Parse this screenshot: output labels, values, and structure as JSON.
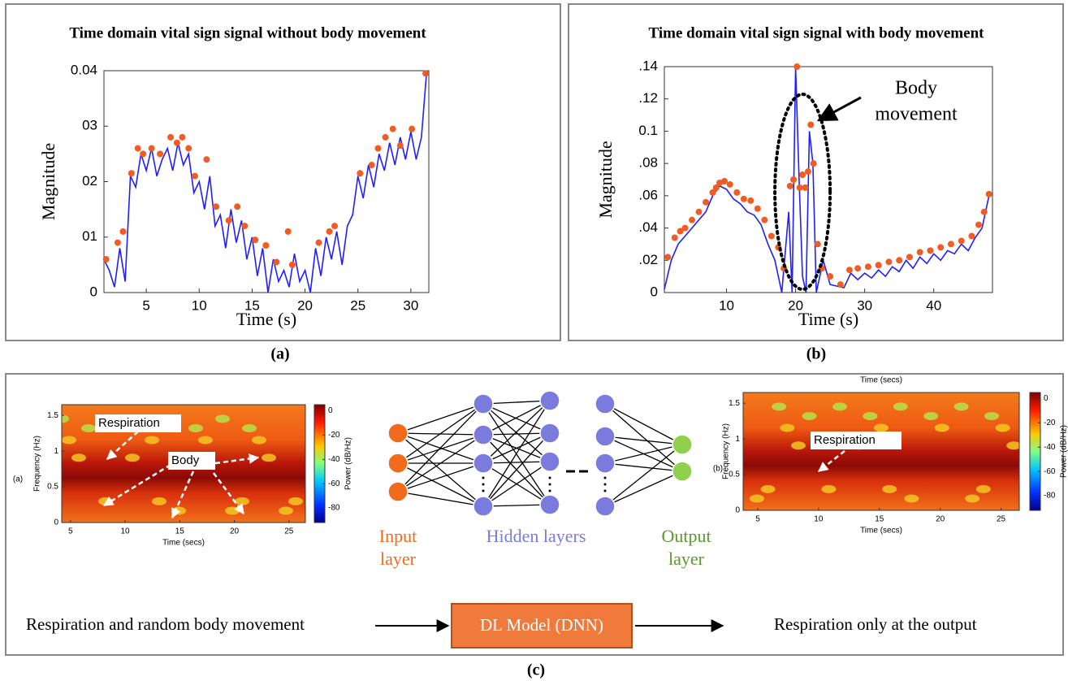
{
  "chart_data": [
    {
      "type": "line",
      "label": "(a)",
      "title": "Time domain vital sign signal without body movement",
      "xlabel": "Time (s)",
      "ylabel": "Magnitude",
      "xlim": [
        1,
        31.7
      ],
      "ylim": [
        0,
        0.04
      ],
      "xticks": [
        5,
        10,
        15,
        20,
        25,
        30
      ],
      "yticks": [
        0,
        {
          "value": 0.01,
          "label": "01"
        },
        {
          "value": 0.02,
          "label": "02"
        },
        {
          "value": 0.03,
          "label": "03"
        },
        0.04
      ],
      "series": [
        {
          "style": "line",
          "color": "#1f1fff",
          "x": [
            1,
            1.5,
            2,
            2.5,
            3,
            3.5,
            4,
            4.5,
            5,
            5.5,
            6,
            6.5,
            7,
            7.5,
            8,
            8.5,
            9,
            9.5,
            10,
            10.5,
            11,
            11.5,
            12,
            12.5,
            13,
            13.5,
            14,
            14.5,
            15,
            15.5,
            16,
            16.5,
            17,
            17.5,
            18,
            18.5,
            19,
            19.5,
            20,
            20.5,
            21,
            21.5,
            22,
            22.5,
            23,
            23.5,
            24,
            24.5,
            25,
            25.5,
            26,
            26.5,
            27,
            27.5,
            28,
            28.5,
            29,
            29.5,
            30,
            30.5,
            31,
            31.5
          ],
          "values": [
            0.006,
            0.004,
            0.001,
            0.008,
            0.002,
            0.021,
            0.019,
            0.025,
            0.022,
            0.026,
            0.021,
            0.024,
            0.026,
            0.022,
            0.027,
            0.023,
            0.025,
            0.018,
            0.02,
            0.015,
            0.021,
            0.012,
            0.014,
            0.008,
            0.015,
            0.009,
            0.013,
            0.006,
            0.01,
            0.003,
            0.008,
            0.0,
            0.006,
            0.002,
            0.004,
            0.001,
            0.007,
            0.002,
            0.004,
            0.0,
            0.008,
            0.003,
            0.01,
            0.006,
            0.011,
            0.005,
            0.012,
            0.014,
            0.021,
            0.017,
            0.023,
            0.019,
            0.025,
            0.022,
            0.027,
            0.023,
            0.028,
            0.024,
            0.029,
            0.024,
            0.028,
            0.04
          ]
        },
        {
          "style": "markers",
          "color": "#f25c22",
          "x": [
            1.2,
            2.3,
            2.8,
            3.6,
            4.2,
            4.7,
            5.5,
            6.3,
            7.3,
            7.9,
            8.4,
            9,
            9.6,
            10.7,
            11.6,
            12.8,
            13.6,
            14.3,
            15.3,
            16.3,
            17.3,
            18.4,
            18.8,
            21.3,
            22.3,
            22.8,
            25.2,
            26.3,
            26.9,
            27.6,
            28.3,
            29,
            30.1,
            31.4
          ],
          "values": [
            0.006,
            0.009,
            0.011,
            0.0215,
            0.026,
            0.025,
            0.026,
            0.025,
            0.028,
            0.027,
            0.028,
            0.026,
            0.021,
            0.024,
            0.0155,
            0.013,
            0.0155,
            0.012,
            0.0095,
            0.0085,
            0.0055,
            0.011,
            0.005,
            0.009,
            0.011,
            0.012,
            0.0215,
            0.023,
            0.026,
            0.028,
            0.0295,
            0.0265,
            0.0295,
            0.0395
          ]
        }
      ]
    },
    {
      "type": "line",
      "label": "(b)",
      "title": "Time domain vital sign signal with body movement",
      "xlabel": "Time (s)",
      "ylabel": "Magnitude",
      "annotations": [
        "Body",
        "movement"
      ],
      "xlim": [
        1,
        48.5
      ],
      "ylim": [
        0,
        0.14
      ],
      "xticks": [
        10,
        20,
        30,
        40
      ],
      "yticks": [
        0,
        {
          "value": 0.02,
          "label": ".02"
        },
        {
          "value": 0.04,
          "label": ".04"
        },
        {
          "value": 0.06,
          "label": ".06"
        },
        {
          "value": 0.08,
          "label": ".08"
        },
        0.1,
        {
          "value": 0.12,
          "label": ".12"
        },
        {
          "value": 0.14,
          "label": ".14"
        }
      ],
      "series": [
        {
          "style": "line",
          "color": "#1f1fff",
          "x": [
            1,
            2,
            3,
            4,
            5,
            6,
            7,
            8,
            9,
            10,
            11,
            12,
            13,
            14,
            15,
            16,
            17,
            18,
            19,
            19.5,
            20,
            20.5,
            21,
            21.5,
            22,
            22.5,
            23,
            24,
            25,
            26,
            27,
            28,
            29,
            30,
            31,
            32,
            33,
            34,
            35,
            36,
            37,
            38,
            39,
            40,
            41,
            42,
            43,
            44,
            45,
            46,
            47,
            48
          ],
          "values": [
            0.002,
            0.02,
            0.03,
            0.035,
            0.04,
            0.045,
            0.05,
            0.06,
            0.066,
            0.064,
            0.058,
            0.055,
            0.05,
            0.048,
            0.042,
            0.03,
            0.02,
            0.0,
            0.05,
            0.0,
            0.14,
            0.07,
            0.01,
            0.0,
            0.1,
            0.08,
            0.0,
            0.02,
            0.005,
            0.004,
            0.003,
            0.012,
            0.008,
            0.012,
            0.009,
            0.014,
            0.01,
            0.016,
            0.013,
            0.02,
            0.015,
            0.022,
            0.018,
            0.024,
            0.02,
            0.026,
            0.024,
            0.03,
            0.026,
            0.034,
            0.04,
            0.06
          ]
        },
        {
          "style": "markers",
          "color": "#f25c22",
          "x": [
            1.5,
            2.5,
            3.3,
            4,
            5,
            6,
            7,
            8,
            8.5,
            9,
            9.7,
            10.5,
            11.5,
            12.5,
            13.5,
            14.5,
            15.5,
            16.5,
            17.5,
            18.3,
            19.2,
            19.7,
            20.2,
            20.6,
            21,
            21.4,
            21.8,
            22.2,
            22.6,
            23.2,
            23.8,
            25,
            26.5,
            27.8,
            29,
            30.5,
            32,
            33.5,
            35,
            36.5,
            38,
            39.5,
            41,
            42.5,
            44,
            45.5,
            46.5,
            47.3,
            48
          ],
          "values": [
            0.022,
            0.034,
            0.038,
            0.04,
            0.045,
            0.05,
            0.056,
            0.062,
            0.065,
            0.068,
            0.069,
            0.067,
            0.062,
            0.058,
            0.057,
            0.052,
            0.045,
            0.035,
            0.028,
            0.015,
            0.066,
            0.07,
            0.14,
            0.065,
            0.073,
            0.065,
            0.075,
            0.104,
            0.08,
            0.03,
            0.015,
            0.01,
            0.005,
            0.014,
            0.015,
            0.016,
            0.017,
            0.019,
            0.02,
            0.022,
            0.025,
            0.026,
            0.028,
            0.03,
            0.032,
            0.035,
            0.042,
            0.05,
            0.061
          ]
        }
      ]
    }
  ],
  "spectrograms": [
    {
      "label": "(a)",
      "xlabel": "Time (secs)",
      "ylabel": "Frequency (Hz)",
      "colorbar_label": "Power (dB/Hz)",
      "xlim": [
        4.2,
        26.5
      ],
      "ylim": [
        0,
        1.65
      ],
      "clim": [
        -92,
        5
      ],
      "xticks": [
        5,
        10,
        15,
        20,
        25
      ],
      "yticks": [
        0,
        0.5,
        1,
        1.5
      ],
      "colorbar_ticks": [
        0,
        -20,
        -40,
        -60,
        -80
      ],
      "annotations": [
        "Respiration",
        "Body"
      ]
    },
    {
      "label": "(b)",
      "top_label": "Time (secs)",
      "xlabel": "Time (secs)",
      "ylabel": "Frequency (Hz)",
      "colorbar_label": "Power (dB/Hz)",
      "xlim": [
        3.8,
        26.5
      ],
      "ylim": [
        0,
        1.65
      ],
      "clim": [
        -92,
        5
      ],
      "xticks": [
        5,
        10,
        15,
        20,
        25
      ],
      "yticks": [
        0,
        0.5,
        1,
        1.5
      ],
      "colorbar_ticks": [
        0,
        -20,
        -40,
        -60,
        -80
      ],
      "annotations": [
        "Respiration"
      ]
    }
  ],
  "diagram": {
    "label": "(c)",
    "input_label": [
      "Input",
      "layer"
    ],
    "hidden_label": "Hidden layers",
    "output_label": [
      "Output",
      "layer"
    ],
    "flow": {
      "input": "Respiration and random body movement",
      "model": "DL Model (DNN)",
      "output": "Respiration only at the output"
    }
  }
}
